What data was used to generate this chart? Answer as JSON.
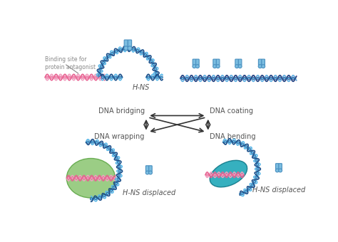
{
  "background_color": "#ffffff",
  "dna_blue_light": "#5bb8e8",
  "dna_blue_dark": "#1a4f8a",
  "dna_pink": "#e86090",
  "dna_pink_light": "#f0a0c0",
  "protein_blue_light": "#7bbde0",
  "protein_blue_dark": "#4a90c0",
  "green_fill": "#90c878",
  "green_edge": "#60a848",
  "teal_fill": "#20a8b8",
  "teal_edge": "#107888",
  "arrow_color": "#333333",
  "text_color": "#555555",
  "gray_color": "#888888",
  "label_fontsize": 7,
  "small_fontsize": 5.5,
  "labels": {
    "bridging": "DNA bridging",
    "coating": "DNA coating",
    "wrapping": "DNA wrapping",
    "bending": "DNA bending",
    "hns1": "H-NS",
    "hns3": "H-NS displaced",
    "hns4": "H-NS displaced",
    "binding_site": "Binding site for\nprotein antagonist"
  }
}
